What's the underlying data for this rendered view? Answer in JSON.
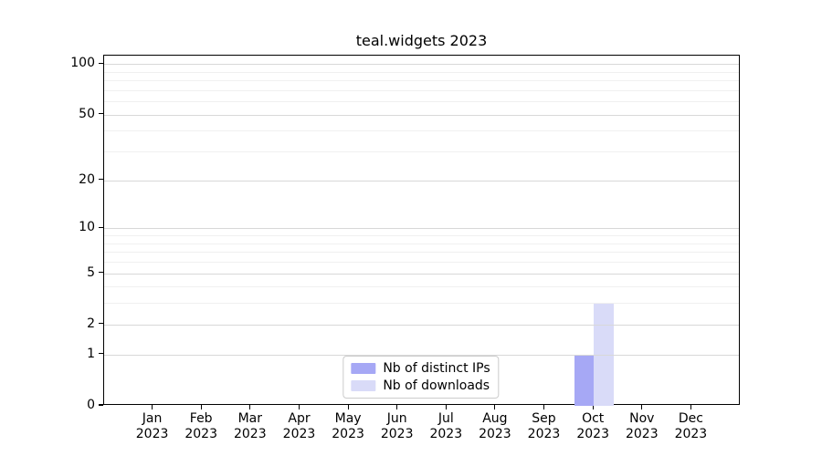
{
  "title": "teal.widgets 2023",
  "chart_data": {
    "type": "bar",
    "title": "teal.widgets 2023",
    "categories": [
      "Jan",
      "Feb",
      "Mar",
      "Apr",
      "May",
      "Jun",
      "Jul",
      "Aug",
      "Sep",
      "Oct",
      "Nov",
      "Dec"
    ],
    "x_year": "2023",
    "series": [
      {
        "name": "Nb of distinct IPs",
        "color": "#a6a8f5",
        "values": [
          0,
          0,
          0,
          0,
          0,
          0,
          0,
          0,
          0,
          1,
          0,
          0
        ]
      },
      {
        "name": "Nb of downloads",
        "color": "#d9dbf8",
        "values": [
          0,
          0,
          0,
          0,
          0,
          0,
          0,
          0,
          0,
          3,
          0,
          0
        ]
      }
    ],
    "yscale": "log1p",
    "yticks": [
      0,
      1,
      2,
      5,
      10,
      20,
      50,
      100
    ],
    "minor_yticks": [
      3,
      4,
      6,
      7,
      8,
      9,
      30,
      40,
      60,
      70,
      80,
      90
    ],
    "ylim": [
      0,
      112
    ],
    "xlabel": "",
    "ylabel": "",
    "grid": true,
    "legend_position": "lower center",
    "colors": {
      "spine": "#000000",
      "major_grid": "#d8d8d8",
      "minor_grid": "#f0f0f0",
      "background": "#ffffff",
      "text": "#000000"
    }
  }
}
